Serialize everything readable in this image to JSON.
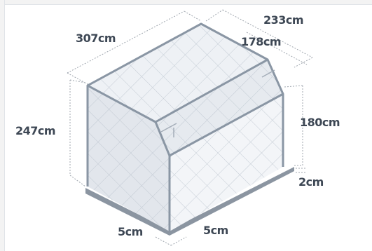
{
  "dimensions": {
    "length_top": "307cm",
    "depth_total": "233cm",
    "depth_inner": "178cm",
    "height_total": "247cm",
    "height_wall": "180cm",
    "base_height": "2cm",
    "base_left": "5cm",
    "base_right": "5cm"
  },
  "colors": {
    "structure": "#8a96a4",
    "fill_light": "#eef1f5",
    "fill_mid": "#e2e6ec",
    "base": "#8b95a1",
    "dim_line": "#a0a7af",
    "text": "#3d4754"
  }
}
